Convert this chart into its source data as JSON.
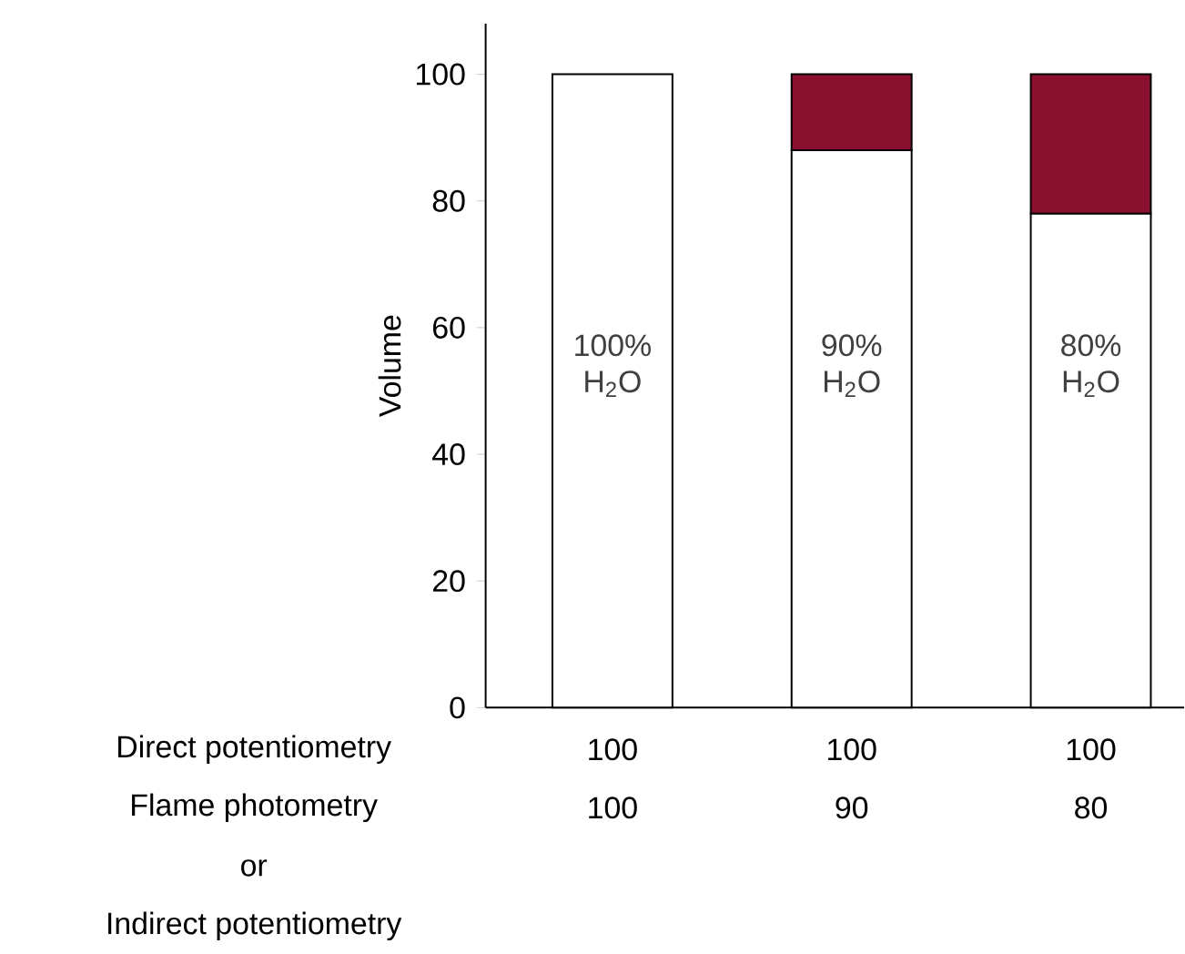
{
  "chart_data": {
    "type": "bar",
    "stacked": true,
    "ylabel": "Volume",
    "categories": [
      null,
      null,
      null
    ],
    "series": [
      {
        "color": "#ffffff",
        "values": [
          100,
          88,
          78
        ]
      },
      {
        "color": "#8b1030",
        "values": [
          0,
          12,
          22
        ]
      }
    ],
    "ylim": [
      0,
      108
    ],
    "yticks": [
      0,
      20,
      40,
      60,
      80,
      100
    ],
    "annotations": [
      "100% H$_{2}$O",
      "90% H$_{2}$O",
      "80% H$_{2}$O",
      "Direct potentiometry",
      "100",
      "100",
      "100",
      "Flame photometry",
      "100",
      "90",
      "80",
      "or",
      "Indirect potentiometry"
    ]
  }
}
